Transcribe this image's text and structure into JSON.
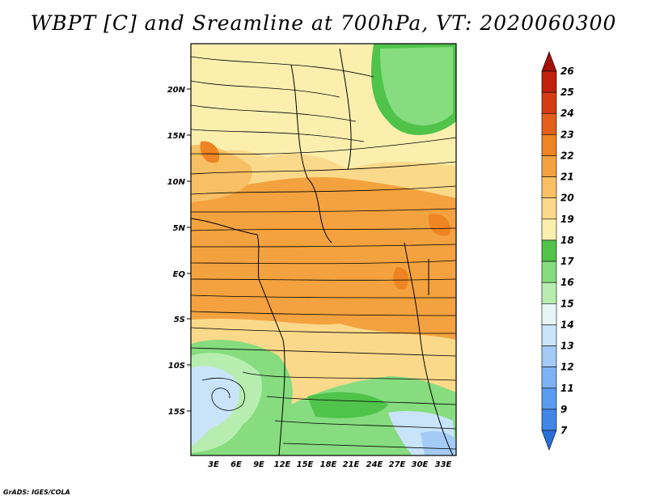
{
  "title": "WBPT [C] and Sreamline at 700hPa, VT: 2020060300",
  "footer": "GrADS: IGES/COLA",
  "map": {
    "lat_labels": [
      "20N",
      "15N",
      "10N",
      "5N",
      "EQ",
      "5S",
      "10S",
      "15S"
    ],
    "lon_labels": [
      "3E",
      "6E",
      "9E",
      "12E",
      "15E",
      "18E",
      "21E",
      "24E",
      "27E",
      "30E",
      "33E"
    ],
    "region": {
      "lon_min": 0,
      "lon_max": 34.5,
      "lat_min": -19.5,
      "lat_max": 24.5
    }
  },
  "colorbar": {
    "labels": [
      "7",
      "9",
      "11",
      "12",
      "13",
      "14",
      "15",
      "16",
      "17",
      "18",
      "19",
      "20",
      "21",
      "22",
      "23",
      "24",
      "25",
      "26"
    ],
    "colors": [
      "#2a6fd8",
      "#3f86e6",
      "#5a9cef",
      "#7db3f3",
      "#a3cbf6",
      "#c9e4f9",
      "#e6f6f6",
      "#b7eeb0",
      "#86dc7f",
      "#4fc34a",
      "#fcefae",
      "#fbd98a",
      "#f8c064",
      "#f3a23f",
      "#ee8423",
      "#e2601b",
      "#d43d14",
      "#c0200e",
      "#a5100a"
    ]
  }
}
